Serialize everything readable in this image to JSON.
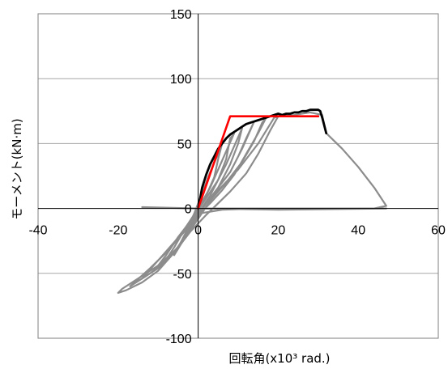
{
  "chart_data": {
    "type": "line",
    "title": "",
    "xlabel": "回転角(x10³ rad.)",
    "ylabel": "モーメント(kN·m)",
    "xlim": [
      -40,
      60
    ],
    "ylim": [
      -100,
      150
    ],
    "xticks": [
      -40,
      -20,
      0,
      20,
      40,
      60
    ],
    "yticks": [
      -100,
      -50,
      0,
      50,
      100,
      150
    ],
    "grid": "horizontal",
    "colors": {
      "hysteresis": "#8c8c8c",
      "envelope": "#000000",
      "bilinear": "#ff0000",
      "axes": "#000000",
      "grid": "#a6a6a6"
    },
    "series": [
      {
        "role": "hysteresis-loops",
        "color": "#8c8c8c",
        "segments": [
          [
            [
              -20,
              -65
            ],
            [
              -19,
              -62
            ],
            [
              -15,
              -54
            ],
            [
              -10,
              -44
            ],
            [
              -5,
              -30
            ],
            [
              -2,
              -16
            ],
            [
              0,
              -5
            ],
            [
              2,
              5
            ],
            [
              5,
              14
            ],
            [
              10,
              30
            ],
            [
              15,
              50
            ],
            [
              19,
              70
            ],
            [
              20,
              71
            ],
            [
              18,
              60
            ],
            [
              15,
              42
            ],
            [
              12,
              27
            ],
            [
              8,
              13
            ],
            [
              5,
              4
            ],
            [
              2,
              -5
            ],
            [
              -2,
              -18
            ],
            [
              -6,
              -34
            ],
            [
              -10,
              -48
            ],
            [
              -14,
              -57
            ],
            [
              -18,
              -63
            ],
            [
              -20,
              -65
            ]
          ],
          [
            [
              -17,
              -60
            ],
            [
              -12,
              -50
            ],
            [
              -8,
              -40
            ],
            [
              -4,
              -26
            ],
            [
              0,
              -8
            ],
            [
              3,
              6
            ],
            [
              7,
              20
            ],
            [
              11,
              36
            ],
            [
              14,
              52
            ],
            [
              16,
              66
            ],
            [
              17,
              70
            ],
            [
              15,
              58
            ],
            [
              12,
              42
            ],
            [
              9,
              26
            ],
            [
              6,
              14
            ],
            [
              3,
              4
            ],
            [
              0,
              -5
            ],
            [
              -4,
              -20
            ],
            [
              -8,
              -34
            ],
            [
              -12,
              -46
            ],
            [
              -17,
              -60
            ]
          ],
          [
            [
              -14,
              -54
            ],
            [
              -10,
              -46
            ],
            [
              -6,
              -34
            ],
            [
              -2,
              -18
            ],
            [
              1,
              0
            ],
            [
              4,
              12
            ],
            [
              8,
              28
            ],
            [
              11,
              46
            ],
            [
              13,
              60
            ],
            [
              14,
              67
            ],
            [
              12,
              54
            ],
            [
              10,
              40
            ],
            [
              8,
              28
            ],
            [
              5,
              16
            ],
            [
              2,
              4
            ],
            [
              -2,
              -12
            ],
            [
              -6,
              -26
            ],
            [
              -10,
              -40
            ],
            [
              -14,
              -54
            ]
          ],
          [
            [
              -11,
              -48
            ],
            [
              -8,
              -40
            ],
            [
              -4,
              -26
            ],
            [
              -1,
              -10
            ],
            [
              2,
              4
            ],
            [
              5,
              16
            ],
            [
              8,
              34
            ],
            [
              10,
              50
            ],
            [
              11,
              62
            ],
            [
              9,
              48
            ],
            [
              7,
              34
            ],
            [
              5,
              22
            ],
            [
              2,
              8
            ],
            [
              -1,
              -6
            ],
            [
              -5,
              -22
            ],
            [
              -8,
              -36
            ],
            [
              -11,
              -48
            ]
          ],
          [
            [
              -9,
              -44
            ],
            [
              -6,
              -34
            ],
            [
              -3,
              -20
            ],
            [
              0,
              -4
            ],
            [
              3,
              10
            ],
            [
              5,
              22
            ],
            [
              7,
              38
            ],
            [
              8,
              54
            ],
            [
              9,
              58
            ],
            [
              7,
              44
            ],
            [
              5,
              30
            ],
            [
              3,
              16
            ],
            [
              0,
              0
            ],
            [
              -3,
              -14
            ],
            [
              -6,
              -30
            ],
            [
              -9,
              -44
            ]
          ],
          [
            [
              -6,
              -36
            ],
            [
              -4,
              -26
            ],
            [
              -2,
              -14
            ],
            [
              0,
              -2
            ],
            [
              2,
              10
            ],
            [
              4,
              24
            ],
            [
              5,
              38
            ],
            [
              6,
              50
            ],
            [
              5,
              42
            ],
            [
              3,
              28
            ],
            [
              1,
              12
            ],
            [
              -1,
              -4
            ],
            [
              -3,
              -18
            ],
            [
              -6,
              -36
            ]
          ],
          [
            [
              20,
              71
            ],
            [
              24,
              72
            ],
            [
              28,
              74
            ],
            [
              31,
              72
            ],
            [
              32,
              58
            ],
            [
              36,
              46
            ],
            [
              40,
              32
            ],
            [
              44,
              16
            ],
            [
              47,
              2
            ],
            [
              44,
              0
            ],
            [
              30,
              0
            ],
            [
              10,
              0
            ],
            [
              0,
              0
            ]
          ],
          [
            [
              -14,
              1
            ],
            [
              0,
              0
            ],
            [
              20,
              -1
            ],
            [
              47,
              0
            ]
          ],
          [
            [
              0,
              -4
            ],
            [
              6,
              -1
            ],
            [
              15,
              0
            ],
            [
              27,
              0
            ],
            [
              40,
              0
            ]
          ]
        ]
      },
      {
        "role": "envelope",
        "color": "#000000",
        "segments": [
          [
            [
              0,
              0
            ],
            [
              0.5,
              8
            ],
            [
              1,
              16
            ],
            [
              2,
              26
            ],
            [
              3,
              34
            ],
            [
              4,
              40
            ],
            [
              5,
              46
            ],
            [
              6,
              50
            ],
            [
              7,
              54
            ],
            [
              8,
              57
            ],
            [
              9,
              59
            ],
            [
              10,
              61
            ],
            [
              11,
              63
            ],
            [
              12,
              65
            ],
            [
              13,
              66
            ],
            [
              14,
              67
            ],
            [
              15,
              68
            ],
            [
              16,
              69
            ],
            [
              17,
              70
            ],
            [
              18,
              71
            ],
            [
              19,
              72
            ],
            [
              20,
              73
            ],
            [
              21,
              72
            ],
            [
              22,
              73
            ],
            [
              23,
              73
            ],
            [
              24,
              74
            ],
            [
              25,
              74
            ],
            [
              26,
              75
            ],
            [
              27,
              75
            ],
            [
              28,
              76
            ],
            [
              29,
              76
            ],
            [
              30,
              76
            ],
            [
              30.5,
              75
            ],
            [
              31,
              70
            ],
            [
              31.5,
              64
            ],
            [
              32,
              58
            ]
          ]
        ]
      },
      {
        "role": "bilinear-model",
        "color": "#ff0000",
        "segments": [
          [
            [
              0,
              0
            ],
            [
              8,
              71
            ],
            [
              30,
              71
            ]
          ]
        ]
      }
    ]
  }
}
